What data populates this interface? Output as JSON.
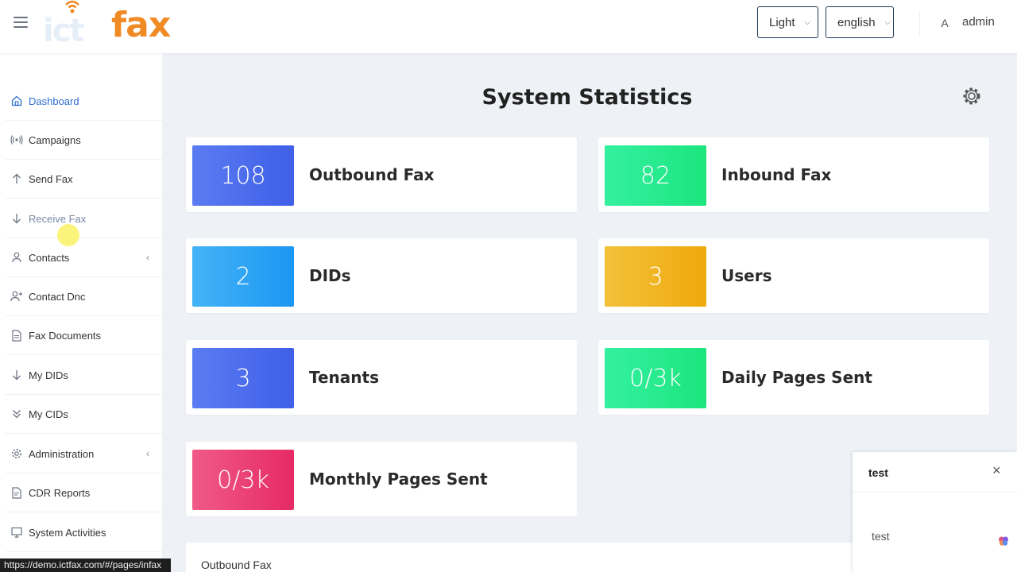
{
  "header": {
    "logo_text": "fax",
    "logo_ghost": "ict",
    "theme_select": "Light",
    "language_select": "english",
    "avatar_initial": "A",
    "username": "admin"
  },
  "sidebar": {
    "items": [
      {
        "label": "Dashboard",
        "icon": "home-icon"
      },
      {
        "label": "Campaigns",
        "icon": "broadcast-icon"
      },
      {
        "label": "Send Fax",
        "icon": "arrow-up-icon"
      },
      {
        "label": "Receive Fax",
        "icon": "arrow-down-icon"
      },
      {
        "label": "Contacts",
        "icon": "user-icon"
      },
      {
        "label": "Contact Dnc",
        "icon": "user-plus-icon"
      },
      {
        "label": "Fax Documents",
        "icon": "document-icon"
      },
      {
        "label": "My DIDs",
        "icon": "arrow-down-icon"
      },
      {
        "label": "My CIDs",
        "icon": "double-chevron-down-icon"
      },
      {
        "label": "Administration",
        "icon": "gear-icon"
      },
      {
        "label": "CDR Reports",
        "icon": "report-icon"
      },
      {
        "label": "System Activities",
        "icon": "monitor-icon"
      }
    ]
  },
  "main": {
    "title": "System Statistics",
    "stats": [
      {
        "value": "108",
        "label": "Outbound Fax",
        "color": "#4a6cf0"
      },
      {
        "value": "82",
        "label": "Inbound Fax",
        "color": "#22ee8e"
      },
      {
        "value": "2",
        "label": "DIDs",
        "color": "#2ea4f5"
      },
      {
        "value": "3",
        "label": "Users",
        "color": "#f2b319"
      },
      {
        "value": "3",
        "label": "Tenants",
        "color": "#4a6cf0"
      },
      {
        "value": "0/3k",
        "label": "Daily Pages Sent",
        "color": "#22ee8e"
      },
      {
        "value": "0/3k",
        "label": "Monthly Pages Sent",
        "color": "#ec3f78"
      }
    ],
    "bottom_panel_title": "Outbound Fax"
  },
  "popup": {
    "title": "test",
    "close": "×",
    "body": "test"
  },
  "statusbar": {
    "url": "https://demo.ictfax.com/#/pages/infax"
  }
}
